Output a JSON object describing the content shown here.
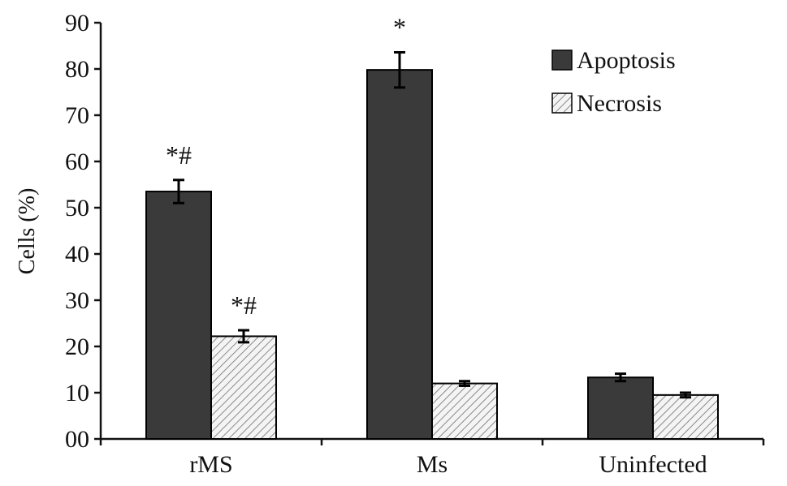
{
  "chart_data": {
    "type": "bar",
    "ylabel": "Cells (%)",
    "ylim": [
      0,
      90
    ],
    "y_ticks": [
      "00",
      "10",
      "20",
      "30",
      "40",
      "50",
      "60",
      "70",
      "80",
      "90"
    ],
    "categories": [
      "rMS",
      "Ms",
      "Uninfected"
    ],
    "series": [
      {
        "name": "Apoptosis",
        "values": [
          53.5,
          79.8,
          13.3
        ],
        "errors": [
          2.5,
          3.8,
          0.8
        ],
        "color": "#3a3a3a",
        "fill": "solid"
      },
      {
        "name": "Necrosis",
        "values": [
          22.2,
          12.0,
          9.5
        ],
        "errors": [
          1.3,
          0.5,
          0.5
        ],
        "color": "#cfcfcf",
        "fill": "hatched"
      }
    ],
    "annotations": [
      {
        "series": 0,
        "category": 0,
        "text": "*#"
      },
      {
        "series": 1,
        "category": 0,
        "text": "*#"
      },
      {
        "series": 0,
        "category": 1,
        "text": "*"
      }
    ],
    "legend": {
      "position": "top-right"
    },
    "grid": false
  }
}
